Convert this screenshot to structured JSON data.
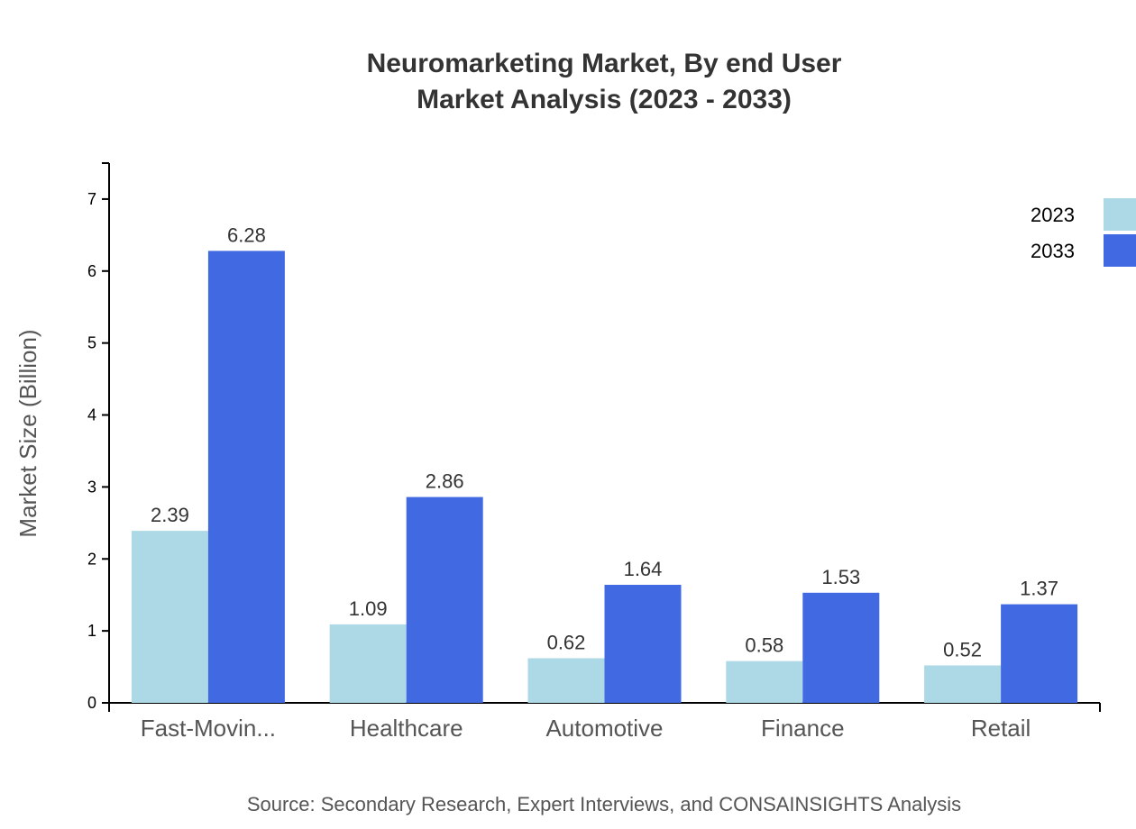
{
  "chart_data": {
    "type": "bar",
    "title": [
      "Neuromarketing Market, By end User",
      "Market Analysis (2023 - 2033)"
    ],
    "xlabel": "",
    "ylabel": "Market Size (Billion)",
    "ylim": [
      0,
      7.5
    ],
    "yticks": [
      0,
      1,
      2,
      3,
      4,
      5,
      6,
      7
    ],
    "categories": [
      "Fast-Movin...",
      "Healthcare",
      "Automotive",
      "Finance",
      "Retail"
    ],
    "series": [
      {
        "name": "2023",
        "color": "#ADD8E6",
        "values": [
          2.39,
          1.09,
          0.62,
          0.58,
          0.52
        ]
      },
      {
        "name": "2033",
        "color": "#4169E1",
        "values": [
          6.28,
          2.86,
          1.64,
          1.53,
          1.37
        ]
      }
    ],
    "legend": "top-right",
    "grid": false,
    "source": "Source: Secondary Research, Expert Interviews, and CONSAINSIGHTS Analysis"
  }
}
